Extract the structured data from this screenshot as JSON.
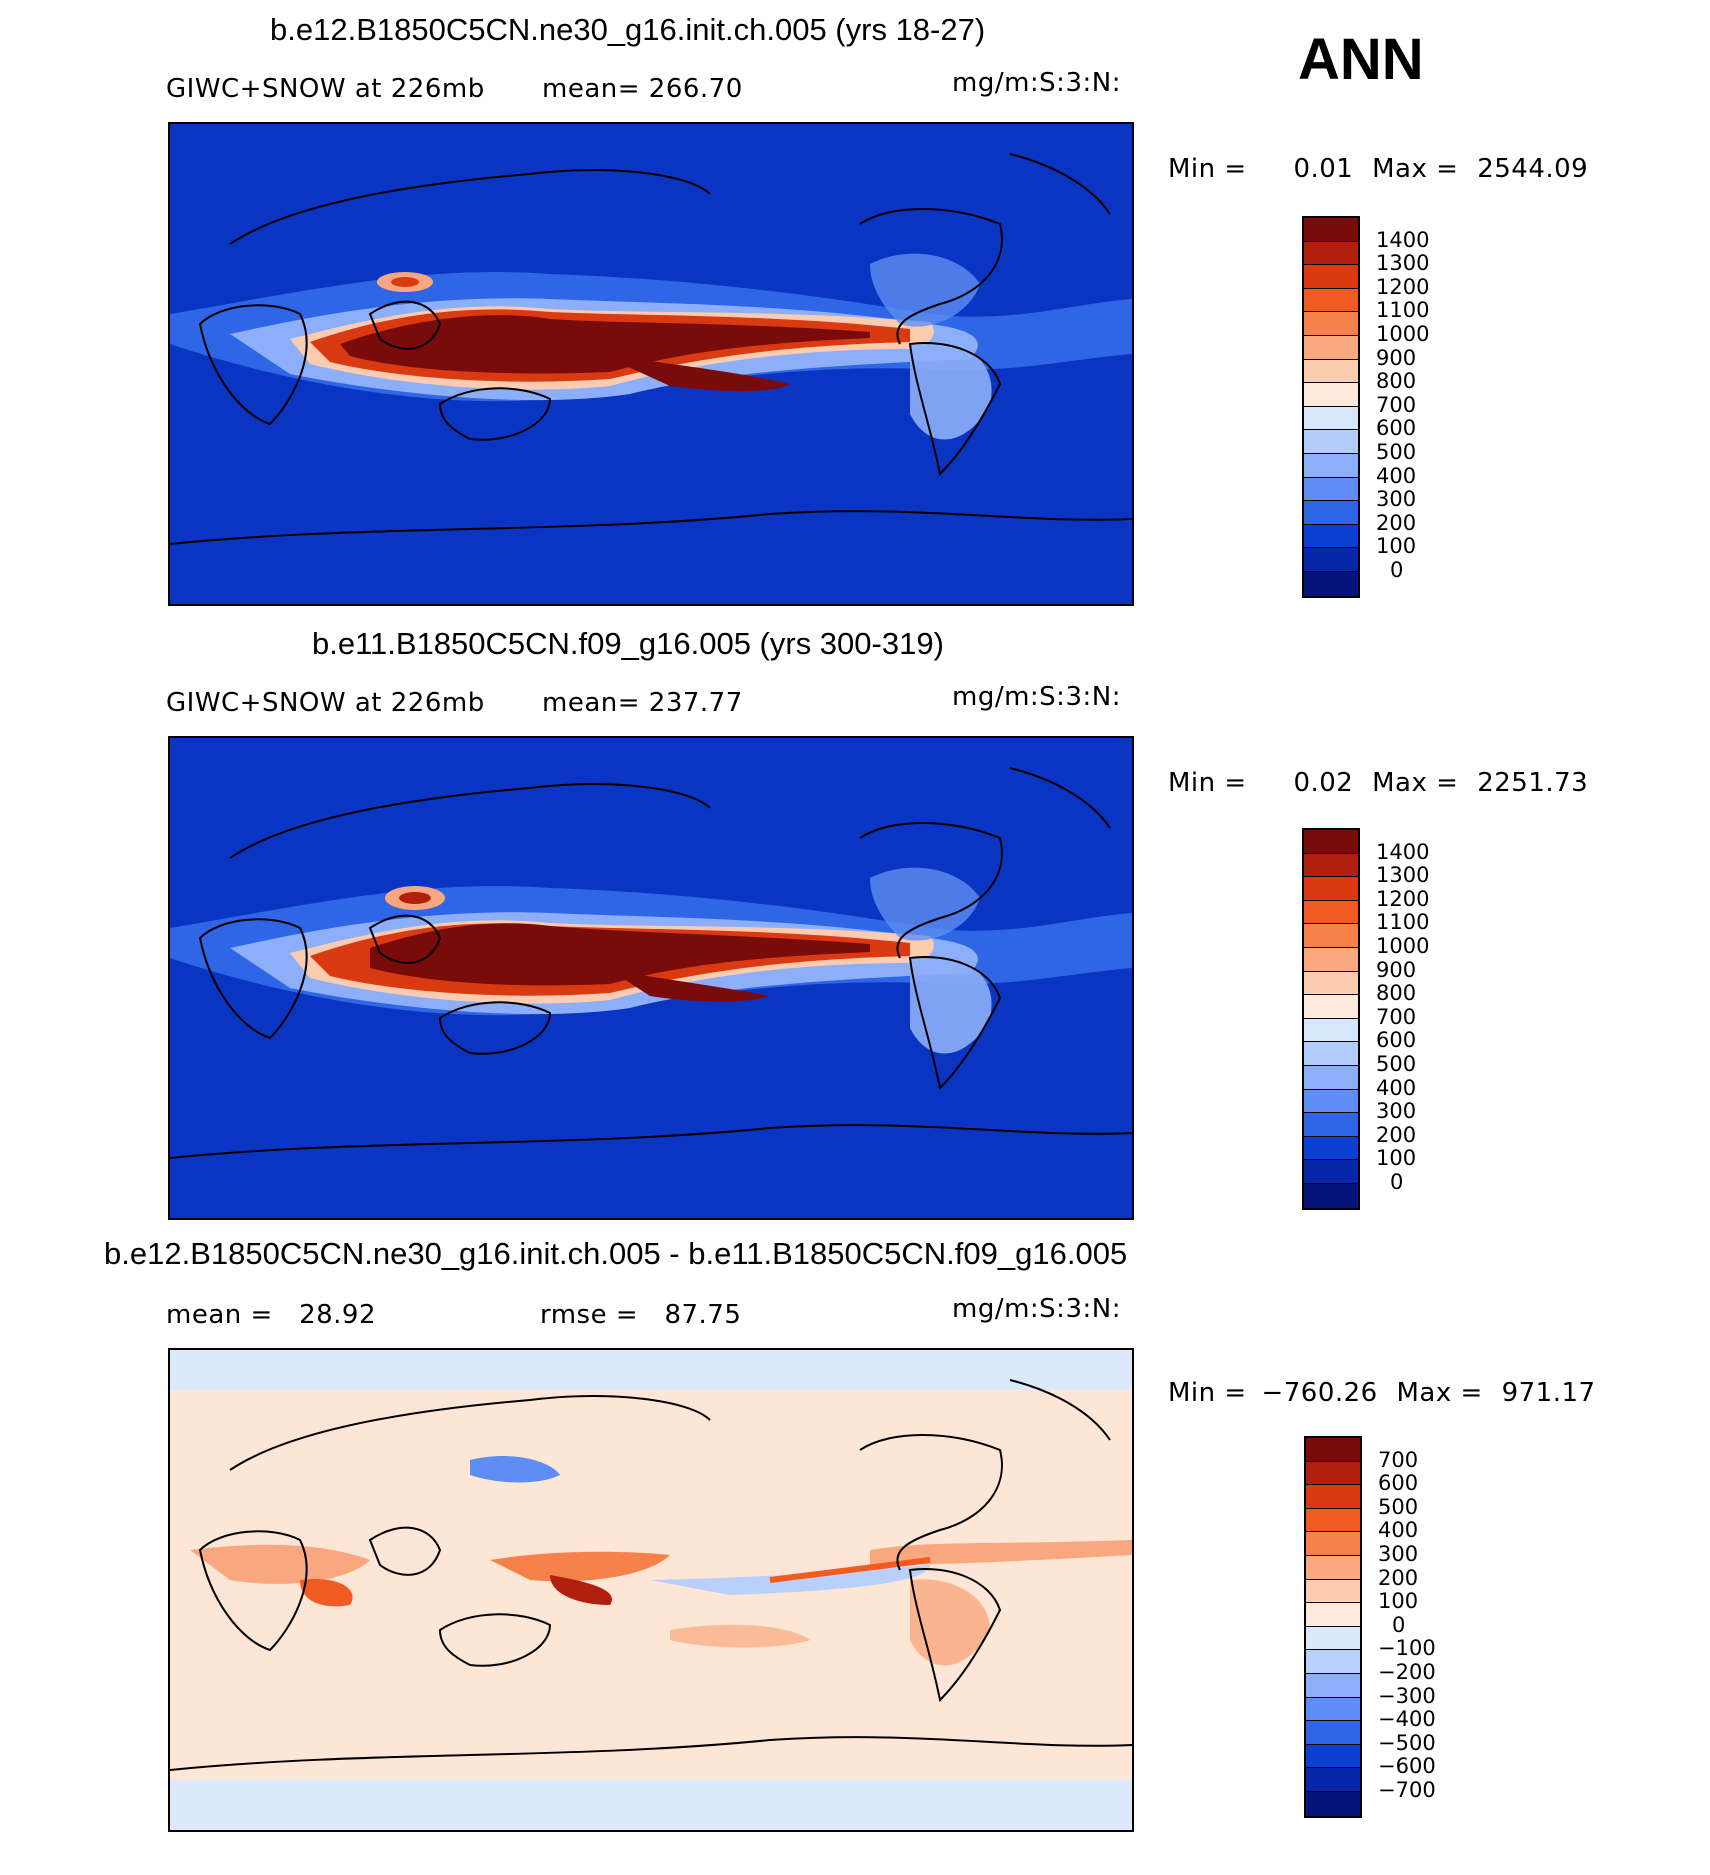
{
  "season": "ANN",
  "panels": [
    {
      "title": "b.e12.B1850C5CN.ne30_g16.init.ch.005 (yrs 18-27)",
      "left_text": "GIWC+SNOW at 226mb",
      "mid_text": "mean= 266.70",
      "units": "mg/m:S:3:N:",
      "min_label": "Min =",
      "min_value": "0.01",
      "max_label": "Max =",
      "max_value": "2544.09",
      "colorbar": {
        "labels": [
          "1400",
          "1300",
          "1200",
          "1100",
          "1000",
          "900",
          "800",
          "700",
          "600",
          "500",
          "400",
          "300",
          "200",
          "100",
          "0"
        ],
        "colors": [
          "#7a0b0b",
          "#b0200c",
          "#d93a12",
          "#ef5b21",
          "#f6824a",
          "#f9a77e",
          "#fcccb0",
          "#fdeadc",
          "#d6e6fb",
          "#b3ccfa",
          "#8daef8",
          "#5e8ef3",
          "#2f66e6",
          "#0b3fd1",
          "#0827a8",
          "#07147a"
        ]
      }
    },
    {
      "title": "b.e11.B1850C5CN.f09_g16.005 (yrs 300-319)",
      "left_text": "GIWC+SNOW at 226mb",
      "mid_text": "mean= 237.77",
      "units": "mg/m:S:3:N:",
      "min_label": "Min =",
      "min_value": "0.02",
      "max_label": "Max =",
      "max_value": "2251.73",
      "colorbar": {
        "labels": [
          "1400",
          "1300",
          "1200",
          "1100",
          "1000",
          "900",
          "800",
          "700",
          "600",
          "500",
          "400",
          "300",
          "200",
          "100",
          "0"
        ],
        "colors": [
          "#7a0b0b",
          "#b0200c",
          "#d93a12",
          "#ef5b21",
          "#f6824a",
          "#f9a77e",
          "#fcccb0",
          "#fdeadc",
          "#d6e6fb",
          "#b3ccfa",
          "#8daef8",
          "#5e8ef3",
          "#2f66e6",
          "#0b3fd1",
          "#0827a8",
          "#07147a"
        ]
      }
    },
    {
      "title": "b.e12.B1850C5CN.ne30_g16.init.ch.005 - b.e11.B1850C5CN.f09_g16.005",
      "left_text": "mean =   28.92",
      "mid_text": "rmse =   87.75",
      "units": "mg/m:S:3:N:",
      "min_label": "Min =",
      "min_value": "−760.26",
      "max_label": "Max =",
      "max_value": "971.17",
      "colorbar": {
        "labels": [
          "700",
          "600",
          "500",
          "400",
          "300",
          "200",
          "100",
          "0",
          "−100",
          "−200",
          "−300",
          "−400",
          "−500",
          "−600",
          "−700"
        ],
        "colors": [
          "#7a0b0b",
          "#b0200c",
          "#d93a12",
          "#ef5b21",
          "#f6824a",
          "#f9a77e",
          "#fcccb0",
          "#fdeadc",
          "#dbe9fb",
          "#b8d0fa",
          "#8daef8",
          "#5e8ef3",
          "#2f66e6",
          "#0b3fd1",
          "#0827a8",
          "#07147a"
        ]
      }
    }
  ],
  "colors": {
    "map_background_top": "#0a35c2",
    "map_background_diff": "#fde6d6",
    "diff_ice": "#dbe9fb"
  }
}
